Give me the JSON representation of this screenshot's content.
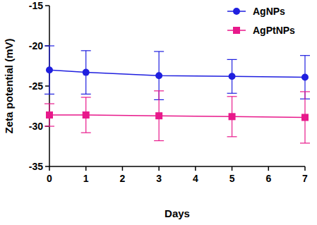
{
  "chart_data": {
    "type": "line",
    "x_label": "Days",
    "y_label": "Zeta potential (mV)",
    "x": [
      0,
      1,
      3,
      5,
      7
    ],
    "series": [
      {
        "name": "AgNPs",
        "color": "#1f1fdf",
        "marker": "circle",
        "values": [
          -23.0,
          -23.3,
          -23.7,
          -23.8,
          -23.9
        ],
        "errors": [
          3.0,
          2.7,
          3.0,
          2.1,
          2.7
        ]
      },
      {
        "name": "AgPtNPs",
        "color": "#e8198b",
        "marker": "square",
        "values": [
          -28.6,
          -28.6,
          -28.7,
          -28.8,
          -28.9
        ],
        "errors": [
          1.4,
          2.2,
          3.1,
          2.5,
          3.2
        ]
      }
    ],
    "xlim": [
      0,
      7
    ],
    "xticks": [
      0,
      1,
      2,
      3,
      4,
      5,
      6,
      7
    ],
    "ylim": [
      -35,
      -15
    ],
    "yticks": [
      -35,
      -30,
      -25,
      -20,
      -15
    ],
    "grid": false,
    "legend": "top-right"
  }
}
